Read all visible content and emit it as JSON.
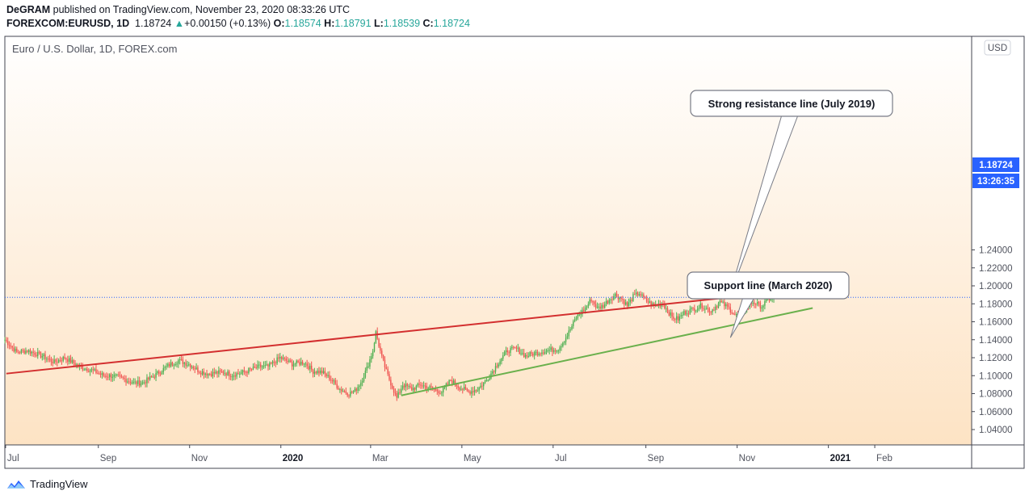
{
  "header": {
    "author": "DeGRAM",
    "published": "published on TradingView.com, November 23, 2020 08:33:26 UTC",
    "symbol": "FOREXCOM:EURUSD, 1D",
    "last": "1.18724",
    "change": "+0.00150 (+0.13%)",
    "o_label": "O:",
    "o": "1.18574",
    "h_label": "H:",
    "h": "1.18791",
    "l_label": "L:",
    "l": "1.18539",
    "c_label": "C:",
    "c": "1.18724"
  },
  "chart_title": "Euro / U.S. Dollar, 1D, FOREX.com",
  "currency_button": "USD",
  "price_badge": "1.18724",
  "time_badge": "13:26:35",
  "footer_brand": "TradingView",
  "colors": {
    "up": "#26a69a",
    "candle_up": "#4caf50",
    "candle_down": "#ef5350",
    "resistance": "#d32f2f",
    "support": "#6ab04c",
    "badge": "#2962ff"
  },
  "chart_data": {
    "type": "candlestick",
    "title": "Euro / U.S. Dollar, 1D, FOREX.com",
    "ylim": [
      1.03,
      1.25
    ],
    "yticks": [
      "1.24000",
      "1.22000",
      "1.20000",
      "1.18000",
      "1.16000",
      "1.14000",
      "1.12000",
      "1.10000",
      "1.08000",
      "1.06000",
      "1.04000"
    ],
    "xticks": [
      {
        "label": "Jul",
        "t": 0.5
      },
      {
        "label": "Sep",
        "t": 62.5
      },
      {
        "label": "Nov",
        "t": 123.5
      },
      {
        "label": "2020",
        "t": 184.5,
        "bold": true
      },
      {
        "label": "Mar",
        "t": 244.5
      },
      {
        "label": "May",
        "t": 305.5
      },
      {
        "label": "Jul",
        "t": 366.5
      },
      {
        "label": "Sep",
        "t": 428.5
      },
      {
        "label": "Nov",
        "t": 489.5
      },
      {
        "label": "2021",
        "t": 550.5,
        "bold": true
      },
      {
        "label": "Feb",
        "t": 581.5
      }
    ],
    "series_close": [
      [
        0,
        1.14
      ],
      [
        8,
        1.126
      ],
      [
        15,
        1.128
      ],
      [
        25,
        1.122
      ],
      [
        33,
        1.115
      ],
      [
        40,
        1.12
      ],
      [
        50,
        1.11
      ],
      [
        58,
        1.106
      ],
      [
        66,
        1.1
      ],
      [
        72,
        1.1
      ],
      [
        80,
        1.096
      ],
      [
        86,
        1.092
      ],
      [
        92,
        1.092
      ],
      [
        100,
        1.1
      ],
      [
        110,
        1.112
      ],
      [
        116,
        1.117
      ],
      [
        124,
        1.112
      ],
      [
        130,
        1.105
      ],
      [
        136,
        1.102
      ],
      [
        146,
        1.104
      ],
      [
        152,
        1.101
      ],
      [
        160,
        1.104
      ],
      [
        170,
        1.11
      ],
      [
        176,
        1.11
      ],
      [
        184,
        1.12
      ],
      [
        192,
        1.113
      ],
      [
        200,
        1.115
      ],
      [
        206,
        1.105
      ],
      [
        212,
        1.104
      ],
      [
        218,
        1.096
      ],
      [
        224,
        1.085
      ],
      [
        230,
        1.08
      ],
      [
        234,
        1.083
      ],
      [
        238,
        1.093
      ],
      [
        242,
        1.108
      ],
      [
        246,
        1.128
      ],
      [
        248,
        1.148
      ],
      [
        252,
        1.12
      ],
      [
        256,
        1.1
      ],
      [
        262,
        1.075
      ],
      [
        266,
        1.09
      ],
      [
        272,
        1.085
      ],
      [
        278,
        1.09
      ],
      [
        286,
        1.085
      ],
      [
        292,
        1.082
      ],
      [
        298,
        1.095
      ],
      [
        304,
        1.087
      ],
      [
        310,
        1.082
      ],
      [
        316,
        1.085
      ],
      [
        322,
        1.095
      ],
      [
        330,
        1.115
      ],
      [
        336,
        1.128
      ],
      [
        342,
        1.13
      ],
      [
        348,
        1.122
      ],
      [
        354,
        1.125
      ],
      [
        362,
        1.128
      ],
      [
        370,
        1.13
      ],
      [
        376,
        1.145
      ],
      [
        382,
        1.165
      ],
      [
        388,
        1.175
      ],
      [
        392,
        1.185
      ],
      [
        396,
        1.175
      ],
      [
        400,
        1.178
      ],
      [
        404,
        1.185
      ],
      [
        408,
        1.19
      ],
      [
        412,
        1.186
      ],
      [
        416,
        1.178
      ],
      [
        420,
        1.188
      ],
      [
        424,
        1.192
      ],
      [
        428,
        1.184
      ],
      [
        434,
        1.178
      ],
      [
        440,
        1.18
      ],
      [
        446,
        1.165
      ],
      [
        450,
        1.163
      ],
      [
        454,
        1.17
      ],
      [
        460,
        1.174
      ],
      [
        466,
        1.178
      ],
      [
        472,
        1.172
      ],
      [
        478,
        1.182
      ],
      [
        484,
        1.175
      ],
      [
        488,
        1.168
      ],
      [
        492,
        1.164
      ],
      [
        496,
        1.178
      ],
      [
        500,
        1.182
      ],
      [
        506,
        1.177
      ],
      [
        510,
        1.185
      ],
      [
        514,
        1.187
      ]
    ],
    "series_ohlc_last": {
      "o": 1.18574,
      "h": 1.18791,
      "l": 1.18539,
      "c": 1.18724
    },
    "lines": [
      {
        "name": "resistance",
        "x1": 1,
        "y1": 1.1023,
        "x2": 540,
        "y2": 1.197
      },
      {
        "name": "support",
        "x1": 265,
        "y1": 1.078,
        "x2": 540,
        "y2": 1.1753
      },
      {
        "name": "last-price",
        "y": 1.18724,
        "style": "dotted"
      }
    ],
    "annotations": [
      {
        "text": "Strong resistance line (July 2019)",
        "target": "resistance"
      },
      {
        "text": "Support line (March 2020)",
        "target": "support"
      }
    ],
    "grid": false
  }
}
